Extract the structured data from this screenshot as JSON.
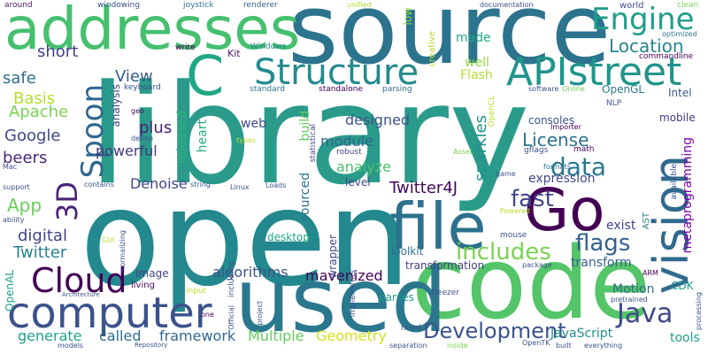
{
  "words": [
    {
      "text": "library",
      "color": "#2a9b8a",
      "vertical": false
    },
    {
      "text": "open",
      "color": "#23898e",
      "vertical": false
    },
    {
      "text": "source",
      "color": "#2c738e",
      "vertical": false
    },
    {
      "text": "code",
      "color": "#54c568",
      "vertical": false
    },
    {
      "text": "used",
      "color": "#2a788e",
      "vertical": false
    },
    {
      "text": "addresses",
      "color": "#46c06f",
      "vertical": false
    },
    {
      "text": "file",
      "color": "#2c718e",
      "vertical": false
    },
    {
      "text": "vision",
      "color": "#306a8e",
      "vertical": true
    },
    {
      "text": "computer",
      "color": "#3b528b",
      "vertical": false
    },
    {
      "text": "Structure",
      "color": "#238a8d",
      "vertical": false
    },
    {
      "text": "APIstreet",
      "color": "#1f958b",
      "vertical": false
    },
    {
      "text": "API",
      "color": "#3d0b55",
      "vertical": false
    },
    {
      "text": "C",
      "color": "#22a785",
      "vertical": false
    },
    {
      "text": "Go",
      "color": "#440154",
      "vertical": false
    },
    {
      "text": "Cloud",
      "color": "#440154",
      "vertical": false
    },
    {
      "text": "Engine",
      "color": "#1f9e89",
      "vertical": false
    },
    {
      "text": "Spoon",
      "color": "#31668e",
      "vertical": true
    },
    {
      "text": "3D",
      "color": "#482475",
      "vertical": true
    },
    {
      "text": "Java",
      "color": "#3e4989",
      "vertical": false
    },
    {
      "text": "data",
      "color": "#2a788e",
      "vertical": false
    },
    {
      "text": "flags",
      "color": "#34618d",
      "vertical": false
    },
    {
      "text": "fast",
      "color": "#404688",
      "vertical": false
    },
    {
      "text": "includes",
      "color": "#7ad151",
      "vertical": false
    },
    {
      "text": "Development",
      "color": "#3b528b",
      "vertical": false
    },
    {
      "text": "Twitter4J",
      "color": "#46085c",
      "vertical": false
    },
    {
      "text": "Location",
      "color": "#25858e",
      "vertical": false
    },
    {
      "text": "License",
      "color": "#2c738e",
      "vertical": false
    },
    {
      "text": "Google",
      "color": "#3e4989",
      "vertical": false
    },
    {
      "text": "Basis",
      "color": "#b5de2b",
      "vertical": false
    },
    {
      "text": "Apache",
      "color": "#7ad151",
      "vertical": false
    },
    {
      "text": "View",
      "color": "#365c8d",
      "vertical": false
    },
    {
      "text": "short",
      "color": "#424086",
      "vertical": false
    },
    {
      "text": "safe",
      "color": "#2e6e8e",
      "vertical": false
    },
    {
      "text": "plus",
      "color": "#481f70",
      "vertical": false
    },
    {
      "text": "beers",
      "color": "#482878",
      "vertical": false
    },
    {
      "text": "powerful",
      "color": "#453781",
      "vertical": false
    },
    {
      "text": "Denoise",
      "color": "#404688",
      "vertical": false
    },
    {
      "text": "App",
      "color": "#6ccd5a",
      "vertical": false
    },
    {
      "text": "digital",
      "color": "#414487",
      "vertical": false
    },
    {
      "text": "Twitter",
      "color": "#26828e",
      "vertical": false
    },
    {
      "text": "generate",
      "color": "#1fa287",
      "vertical": false
    },
    {
      "text": "called",
      "color": "#2f6c8e",
      "vertical": false
    },
    {
      "text": "framework",
      "color": "#31688e",
      "vertical": false
    },
    {
      "text": "Multiple",
      "color": "#63cb5f",
      "vertical": false
    },
    {
      "text": "Geometry",
      "color": "#d2e21b",
      "vertical": false
    },
    {
      "text": "algorithms",
      "color": "#3a538b",
      "vertical": false
    },
    {
      "text": "mavenized",
      "color": "#440154",
      "vertical": false
    },
    {
      "text": "designed",
      "color": "#3b528b",
      "vertical": false
    },
    {
      "text": "module",
      "color": "#33638d",
      "vertical": false
    },
    {
      "text": "analyze",
      "color": "#4ac16d",
      "vertical": false
    },
    {
      "text": "sparkles",
      "color": "#20928c",
      "vertical": true
    },
    {
      "text": "made",
      "color": "#22a884",
      "vertical": false
    },
    {
      "text": "well",
      "color": "#8fd744",
      "vertical": false
    },
    {
      "text": "Flash",
      "color": "#b0dd2f",
      "vertical": false
    },
    {
      "text": "OpenGL",
      "color": "#2a788e",
      "vertical": false
    },
    {
      "text": "Intel",
      "color": "#38598c",
      "vertical": false
    },
    {
      "text": "consoles",
      "color": "#3b528b",
      "vertical": false
    },
    {
      "text": "mobile",
      "color": "#443983",
      "vertical": false
    },
    {
      "text": "metaprogramming",
      "color": "#7e03a8",
      "vertical": true
    },
    {
      "text": "expression",
      "color": "#3e4a89",
      "vertical": false
    },
    {
      "text": "exist",
      "color": "#404588",
      "vertical": false
    },
    {
      "text": "transform",
      "color": "#355f8d",
      "vertical": false
    },
    {
      "text": "transformation",
      "color": "#433e85",
      "vertical": false
    },
    {
      "text": "Toolkit",
      "color": "#2d708e",
      "vertical": false
    },
    {
      "text": "Motion",
      "color": "#2f6b8e",
      "vertical": false
    },
    {
      "text": "CDK",
      "color": "#1f988b",
      "vertical": false
    },
    {
      "text": "JavaScript",
      "color": "#21908d",
      "vertical": false
    },
    {
      "text": "tools",
      "color": "#1f9e89",
      "vertical": false
    },
    {
      "text": "parses",
      "color": "#1e9b8a",
      "vertical": false
    },
    {
      "text": "wrapper",
      "color": "#3e4a89",
      "vertical": true
    },
    {
      "text": "heart",
      "color": "#26ad81",
      "vertical": true
    },
    {
      "text": "released",
      "color": "#2fb47c",
      "vertical": true
    },
    {
      "text": "sourced",
      "color": "#2d708e",
      "vertical": true
    },
    {
      "text": "build",
      "color": "#63cb5f",
      "vertical": true
    },
    {
      "text": "web",
      "color": "#3e4989",
      "vertical": false
    },
    {
      "text": "desktop",
      "color": "#22a884",
      "vertical": false
    },
    {
      "text": "level",
      "color": "#404688",
      "vertical": false
    },
    {
      "text": "analysis",
      "color": "#3f4788",
      "vertical": true
    },
    {
      "text": "Image",
      "color": "#414487",
      "vertical": false
    },
    {
      "text": "living",
      "color": "#46085c",
      "vertical": false
    },
    {
      "text": "Kit",
      "color": "#481a6c",
      "vertical": false
    },
    {
      "text": "Windows",
      "color": "#26828e",
      "vertical": false
    },
    {
      "text": "write",
      "color": "#440154",
      "vertical": false
    },
    {
      "text": "keyboard",
      "color": "#3b528b",
      "vertical": false
    },
    {
      "text": "standard",
      "color": "#2c728e",
      "vertical": false
    },
    {
      "text": "standalone",
      "color": "#440154",
      "vertical": false
    },
    {
      "text": "parsing",
      "color": "#31688e",
      "vertical": false
    },
    {
      "text": "around",
      "color": "#48186a",
      "vertical": false
    },
    {
      "text": "windowing",
      "color": "#3b528b",
      "vertical": false
    },
    {
      "text": "joystick",
      "color": "#2a788e",
      "vertical": false
    },
    {
      "text": "renderer",
      "color": "#33638d",
      "vertical": false
    },
    {
      "text": "unified",
      "color": "#addc30",
      "vertical": false
    },
    {
      "text": "documentation",
      "color": "#3b528b",
      "vertical": false
    },
    {
      "text": "world",
      "color": "#3e4989",
      "vertical": false
    },
    {
      "text": "clean",
      "color": "#7ad151",
      "vertical": false
    },
    {
      "text": "optimized",
      "color": "#2c728e",
      "vertical": false
    },
    {
      "text": "commandline",
      "color": "#440154",
      "vertical": false
    },
    {
      "text": "low",
      "color": "#8fd744",
      "vertical": true
    },
    {
      "text": "creative",
      "color": "#b5de2b",
      "vertical": true
    },
    {
      "text": "software",
      "color": "#3b528b",
      "vertical": false
    },
    {
      "text": "Online",
      "color": "#6ece58",
      "vertical": false
    },
    {
      "text": "NLP",
      "color": "#3b528b",
      "vertical": false
    },
    {
      "text": "Importer",
      "color": "#440154",
      "vertical": false
    },
    {
      "text": "gflags",
      "color": "#3b528b",
      "vertical": false
    },
    {
      "text": "math",
      "color": "#440154",
      "vertical": false
    },
    {
      "text": "formats",
      "color": "#2c728e",
      "vertical": false
    },
    {
      "text": "available",
      "color": "#3b528b",
      "vertical": true
    },
    {
      "text": "Asset",
      "color": "#7ad151",
      "vertical": false
    },
    {
      "text": "game",
      "color": "#3b528b",
      "vertical": false
    },
    {
      "text": "robust",
      "color": "#404688",
      "vertical": false
    },
    {
      "text": "statistical",
      "color": "#3e4989",
      "vertical": true
    },
    {
      "text": "OpenCL",
      "color": "#b5de2b",
      "vertical": true
    },
    {
      "text": "Powered",
      "color": "#b5de2b",
      "vertical": false
    },
    {
      "text": "mouse",
      "color": "#3b528b",
      "vertical": false
    },
    {
      "text": "AST",
      "color": "#26828e",
      "vertical": true
    },
    {
      "text": "ARM",
      "color": "#440154",
      "vertical": false
    },
    {
      "text": "package",
      "color": "#3b528b",
      "vertical": false
    },
    {
      "text": "pretrained",
      "color": "#3b528b",
      "vertical": false
    },
    {
      "text": "processing",
      "color": "#3b528b",
      "vertical": true
    },
    {
      "text": "Deezer",
      "color": "#3b528b",
      "vertical": false
    },
    {
      "text": "need",
      "color": "#3b528b",
      "vertical": false
    },
    {
      "text": "implements",
      "color": "#3b528b",
      "vertical": true
    },
    {
      "text": "including",
      "color": "#3b528b",
      "vertical": true
    },
    {
      "text": "Official",
      "color": "#3b528b",
      "vertical": true
    },
    {
      "text": "project",
      "color": "#3b528b",
      "vertical": true
    },
    {
      "text": "one",
      "color": "#440154",
      "vertical": false
    },
    {
      "text": "input",
      "color": "#b5de2b",
      "vertical": false
    },
    {
      "text": "Architecture",
      "color": "#3b528b",
      "vertical": false
    },
    {
      "text": "models",
      "color": "#3b528b",
      "vertical": false
    },
    {
      "text": "Repository",
      "color": "#3b528b",
      "vertical": false
    },
    {
      "text": "separation",
      "color": "#3b528b",
      "vertical": false
    },
    {
      "text": "inside",
      "color": "#7ad151",
      "vertical": false
    },
    {
      "text": "OpenTK",
      "color": "#3b528b",
      "vertical": false
    },
    {
      "text": "built",
      "color": "#3b528b",
      "vertical": false
    },
    {
      "text": "everything",
      "color": "#3b528b",
      "vertical": false
    },
    {
      "text": "OpenAL",
      "color": "#1f9e89",
      "vertical": true
    },
    {
      "text": "GUI",
      "color": "#b5de2b",
      "vertical": false
    },
    {
      "text": "normalizing",
      "color": "#3b528b",
      "vertical": true
    },
    {
      "text": "ability",
      "color": "#3b528b",
      "vertical": false
    },
    {
      "text": "support",
      "color": "#3b528b",
      "vertical": false
    },
    {
      "text": "Mac",
      "color": "#3b528b",
      "vertical": false
    },
    {
      "text": "contains",
      "color": "#3b528b",
      "vertical": false
    },
    {
      "text": "string",
      "color": "#3b528b",
      "vertical": false
    },
    {
      "text": "Linux",
      "color": "#3b528b",
      "vertical": false
    },
    {
      "text": "Loads",
      "color": "#3b528b",
      "vertical": false
    },
    {
      "text": "geo",
      "color": "#440154",
      "vertical": false
    },
    {
      "text": "define",
      "color": "#3b528b",
      "vertical": false
    },
    {
      "text": "types",
      "color": "#b5de2b",
      "vertical": false
    }
  ]
}
